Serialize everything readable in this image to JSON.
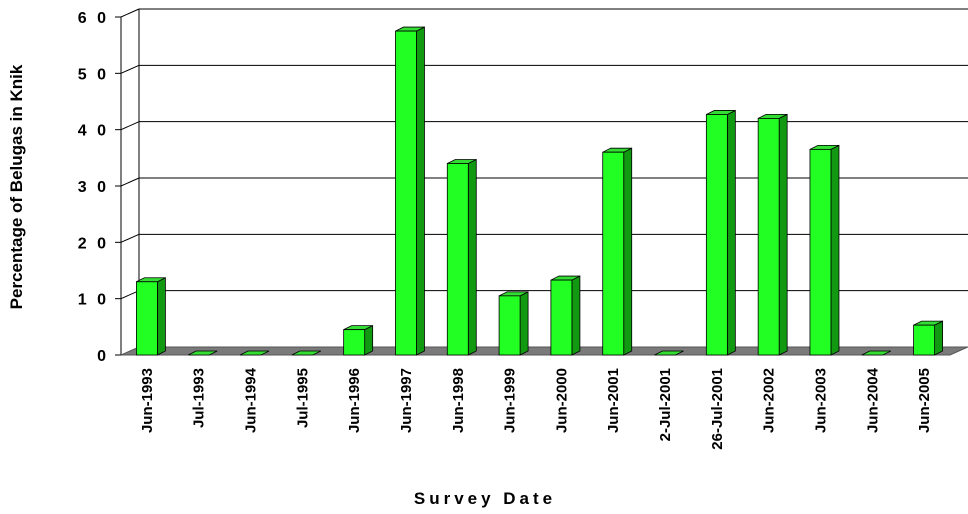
{
  "chart_data": {
    "type": "bar",
    "xlabel": "Survey Date",
    "ylabel": "Percentage of Belugas in Knik",
    "ylim": [
      0,
      60
    ],
    "yticks": [
      "0",
      "1 0",
      "2 0",
      "3 0",
      "4 0",
      "5 0",
      "6 0"
    ],
    "grid": true,
    "categories": [
      "Jun-1993",
      "Jul-1993",
      "Jun-1994",
      "Jul-1995",
      "Jun-1996",
      "Jun-1997",
      "Jun-1998",
      "Jun-1999",
      "Jun-2000",
      "Jun-2001",
      "2-Jul-2001",
      "26-Jul-2001",
      "Jun-2002",
      "Jun-2003",
      "Jun-2004",
      "Jun-2005"
    ],
    "values": [
      13,
      0,
      0,
      0,
      4.5,
      57.5,
      34,
      10.5,
      13.3,
      36,
      0,
      42.7,
      42,
      36.5,
      0,
      5.3
    ],
    "colors": {
      "bar_front": "#22ff22",
      "bar_side": "#119911",
      "bar_top": "#33dd33",
      "floor": "#7a7a7a",
      "floor_edge": "#555555",
      "grid": "#000000"
    }
  }
}
